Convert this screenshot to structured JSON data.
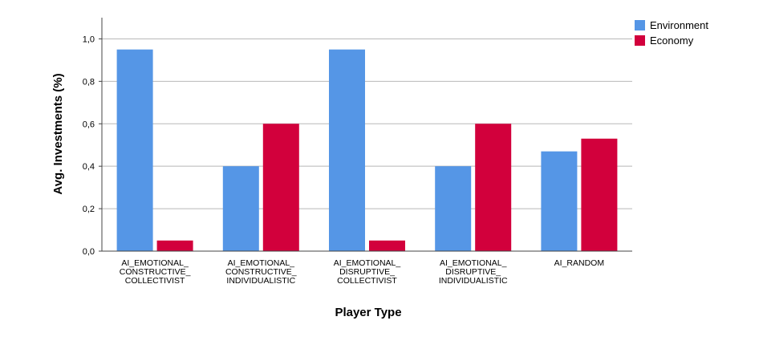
{
  "chart_data": {
    "type": "bar",
    "title": "",
    "xlabel": "Player Type",
    "ylabel": "Avg. Investments (%)",
    "ylim": [
      0,
      1.1
    ],
    "yticks": [
      "0,0",
      "0,2",
      "0,4",
      "0,6",
      "0,8",
      "1,0"
    ],
    "ytick_values": [
      0,
      0.2,
      0.4,
      0.6,
      0.8,
      1.0
    ],
    "grid": true,
    "legend_position": "top-right",
    "categories": [
      [
        "AI_EMOTIONAL_",
        "CONSTRUCTIVE_",
        "COLLECTIVIST"
      ],
      [
        "AI_EMOTIONAL_",
        "CONSTRUCTIVE_",
        "INDIVIDUALISTIC"
      ],
      [
        "AI_EMOTIONAL_",
        "DISRUPTIVE_",
        "COLLECTIVIST"
      ],
      [
        "AI_EMOTIONAL_",
        "DISRUPTIVE_",
        "INDIVIDUALISTIC"
      ],
      [
        "AI_RANDOM"
      ]
    ],
    "series": [
      {
        "name": "Environment",
        "color": "#5596E6",
        "values": [
          0.95,
          0.4,
          0.95,
          0.4,
          0.47
        ]
      },
      {
        "name": "Economy",
        "color": "#D2003C",
        "values": [
          0.05,
          0.6,
          0.05,
          0.6,
          0.53
        ]
      }
    ]
  }
}
